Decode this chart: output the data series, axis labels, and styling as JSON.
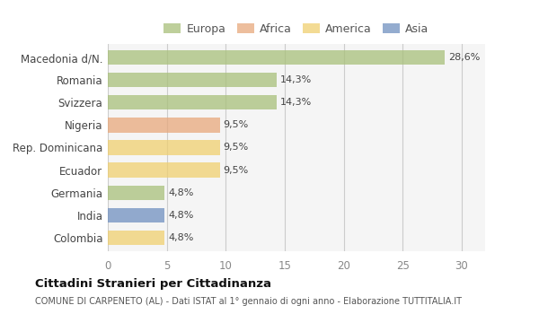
{
  "countries": [
    "Macedonia d/N.",
    "Romania",
    "Svizzera",
    "Nigeria",
    "Rep. Dominicana",
    "Ecuador",
    "Germania",
    "India",
    "Colombia"
  ],
  "values": [
    28.6,
    14.3,
    14.3,
    9.5,
    9.5,
    9.5,
    4.8,
    4.8,
    4.8
  ],
  "labels": [
    "28,6%",
    "14,3%",
    "14,3%",
    "9,5%",
    "9,5%",
    "9,5%",
    "4,8%",
    "4,8%",
    "4,8%"
  ],
  "colors": [
    "#a8c07a",
    "#a8c07a",
    "#a8c07a",
    "#e8a87c",
    "#f0d070",
    "#f0d070",
    "#a8c07a",
    "#7090c0",
    "#f0d070"
  ],
  "legend": [
    {
      "label": "Europa",
      "color": "#a8c07a"
    },
    {
      "label": "Africa",
      "color": "#e8a87c"
    },
    {
      "label": "America",
      "color": "#f0d070"
    },
    {
      "label": "Asia",
      "color": "#7090c0"
    }
  ],
  "xlim": [
    0,
    32
  ],
  "xticks": [
    0,
    5,
    10,
    15,
    20,
    25,
    30
  ],
  "title": "Cittadini Stranieri per Cittadinanza",
  "subtitle": "COMUNE DI CARPENETO (AL) - Dati ISTAT al 1° gennaio di ogni anno - Elaborazione TUTTITALIA.IT",
  "background_color": "#ffffff",
  "plot_bg_color": "#f5f5f5",
  "bar_alpha": 0.75,
  "bar_height": 0.65
}
